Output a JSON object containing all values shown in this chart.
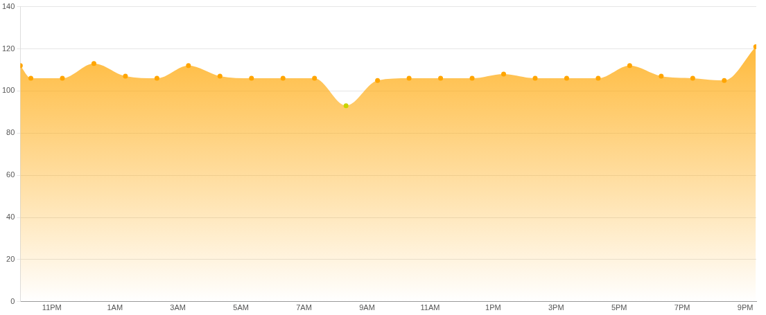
{
  "chart_data": {
    "type": "area",
    "x": [
      "--01-01T22:00",
      "--01-01T22:20",
      "--01-01T23:20",
      "--01-02T00:20",
      "--01-02T01:20",
      "--01-02T02:20",
      "--01-02T03:20",
      "--01-02T04:20",
      "--01-02T05:20",
      "--01-02T06:20",
      "--01-02T07:20",
      "--01-02T08:20",
      "--01-02T09:20",
      "--01-02T10:20",
      "--01-02T11:20",
      "--01-02T12:20",
      "--01-02T13:20",
      "--01-02T14:20",
      "--01-02T15:20",
      "--01-02T16:20",
      "--01-02T17:20",
      "--01-02T18:20",
      "--01-02T19:20",
      "--01-02T20:20",
      "--01-02T21:20"
    ],
    "series": [
      {
        "color": "#ffa500",
        "values": [
          112,
          106,
          106,
          113,
          107,
          106,
          112,
          107,
          106,
          106,
          106,
          93,
          105,
          106,
          106,
          106,
          108,
          106,
          106,
          106,
          112,
          107,
          106,
          105,
          121
        ],
        "colors": [
          "#ffa500",
          "#ffa500",
          "#ffa500",
          "#ffa500",
          "#ffa500",
          "#ffa500",
          "#ffa500",
          "#ffa500",
          "#ffa500",
          "#ffa500",
          "#ffa500",
          "#c8d400",
          "#ffa500",
          "#ffa500",
          "#ffa500",
          "#ffa500",
          "#ffa500",
          "#ffa500",
          "#ffa500",
          "#ffa500",
          "#ffa500",
          "#ffa500",
          "#ffa500",
          "#ffa500",
          "#ffa500"
        ]
      }
    ],
    "xlim": [
      "--01-01T22:00",
      "--01-02T21:21"
    ],
    "xticks": [
      {
        "value": "--01-01T23:00",
        "label": "11PM"
      },
      {
        "value": "--01-02T01:00",
        "label": "1AM"
      },
      {
        "value": "--01-02T03:00",
        "label": "3AM"
      },
      {
        "value": "--01-02T05:00",
        "label": "5AM"
      },
      {
        "value": "--01-02T07:00",
        "label": "7AM"
      },
      {
        "value": "--01-02T09:00",
        "label": "9AM"
      },
      {
        "value": "--01-02T11:00",
        "label": "11AM"
      },
      {
        "value": "--01-02T13:00",
        "label": "1PM"
      },
      {
        "value": "--01-02T15:00",
        "label": "3PM"
      },
      {
        "value": "--01-02T17:00",
        "label": "5PM"
      },
      {
        "value": "--01-02T19:00",
        "label": "7PM"
      },
      {
        "value": "--01-02T21:00",
        "label": "9PM"
      }
    ],
    "ylim": [
      0,
      140
    ],
    "yticks": [
      0,
      20,
      40,
      60,
      80,
      100,
      120,
      140
    ],
    "grid": "y",
    "legend": false,
    "marker": "circle"
  }
}
